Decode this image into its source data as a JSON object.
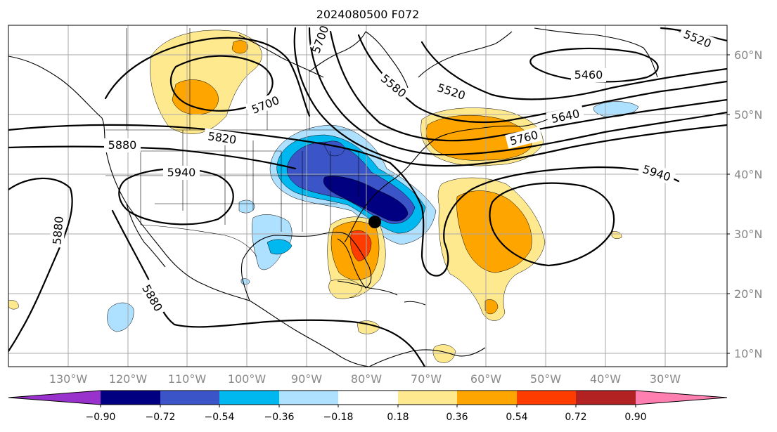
{
  "title": "2024080500 F072",
  "colors": {
    "lev_m090_m072": "#000080",
    "lev_m072_m054": "#3b55c8",
    "lev_m054_m036": "#00b8f0",
    "lev_m036_m018": "#aee0ff",
    "lev_m018_018": "#ffffff",
    "lev_018_036": "#ffe98f",
    "lev_036_054": "#ffa500",
    "lev_054_072": "#ff3c00",
    "lev_072_090": "#b22222",
    "under": "#9932cc",
    "over": "#ff80b0",
    "contour": "#000000",
    "gridline": "#a8a8a8",
    "coastline": "#000000"
  },
  "axes": {
    "lon_labels": [
      "130°W",
      "120°W",
      "110°W",
      "100°W",
      "90°W",
      "80°W",
      "70°W",
      "60°W",
      "50°W",
      "40°W",
      "30°W"
    ],
    "lat_labels": [
      "60°N",
      "50°N",
      "40°N",
      "30°N",
      "20°N",
      "10°N"
    ]
  },
  "colorbar": {
    "tick_labels": [
      "−0.90",
      "−0.72",
      "−0.54",
      "−0.36",
      "−0.18",
      "0.18",
      "0.36",
      "0.54",
      "0.72",
      "0.90"
    ],
    "levels": [
      -0.9,
      -0.72,
      -0.54,
      -0.36,
      -0.18,
      0.18,
      0.36,
      0.54,
      0.72,
      0.9
    ],
    "extend": "both"
  },
  "contour_labels": [
    "5700",
    "5700",
    "5520",
    "5460",
    "5580",
    "5520",
    "5640",
    "5760",
    "5820",
    "5880",
    "5940",
    "5880",
    "5880",
    "5940"
  ],
  "storm_marker": "black-dot"
}
